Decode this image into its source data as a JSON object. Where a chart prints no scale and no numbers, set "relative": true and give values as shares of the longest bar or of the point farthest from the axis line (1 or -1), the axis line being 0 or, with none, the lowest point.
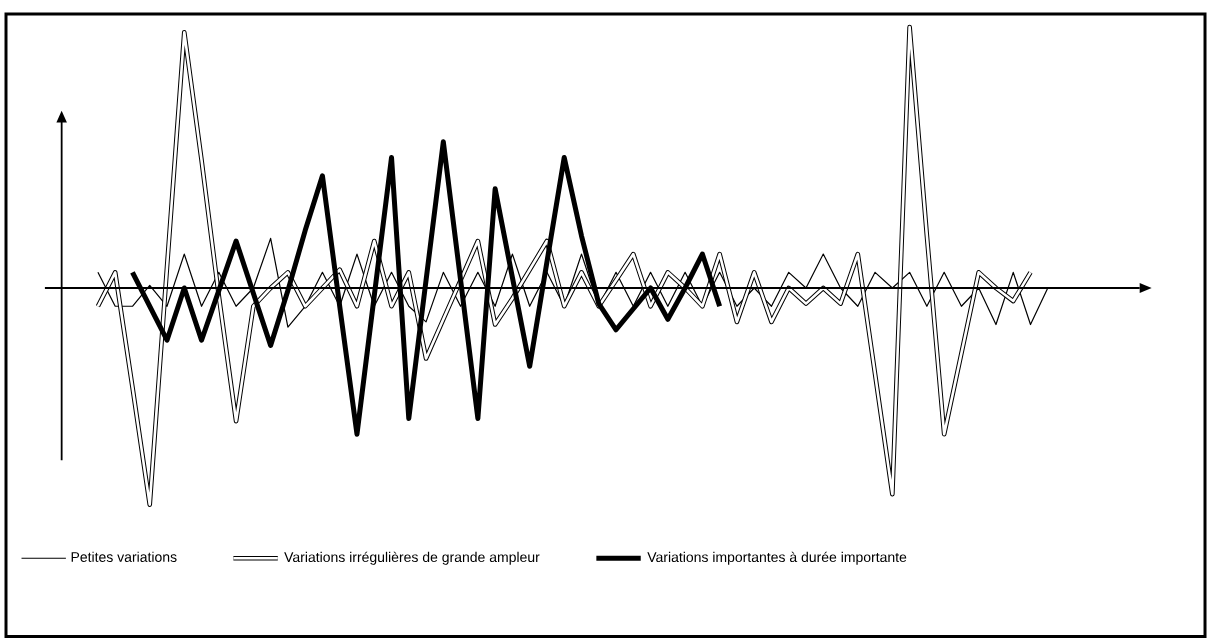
{
  "chart_data": {
    "type": "line",
    "relative": true,
    "legend": "bottom",
    "marker": "none",
    "line_style": "solid",
    "categories": [
      null,
      null,
      null,
      null,
      null,
      null,
      null,
      null,
      null,
      null,
      null,
      null,
      null,
      null,
      null,
      null,
      null,
      null,
      null,
      null,
      null,
      null,
      null,
      null,
      null,
      null,
      null,
      null,
      null,
      null,
      null,
      null,
      null,
      null,
      null,
      null,
      null,
      null,
      null,
      null,
      null,
      null,
      null,
      null,
      null,
      null,
      null,
      null,
      null,
      null,
      null,
      null,
      null,
      null,
      null,
      null
    ],
    "series": [
      {
        "name": "Petites variations",
        "color": "#000000",
        "values": [
          0.06,
          -0.07,
          -0.07,
          0.01,
          -0.07,
          0.13,
          -0.07,
          0.06,
          -0.07,
          0,
          0.19,
          -0.15,
          -0.07,
          0.06,
          -0.07,
          0.13,
          -0.07,
          0.06,
          -0.07,
          -0.13,
          0.06,
          -0.07,
          0.06,
          -0.07,
          0.13,
          -0.07,
          0.06,
          -0.07,
          0.13,
          -0.07,
          0.06,
          -0.07,
          0.06,
          -0.07,
          0.06,
          -0.07,
          0.06,
          -0.07,
          0,
          -0.07,
          0.06,
          0,
          0.13,
          0,
          -0.07,
          0.06,
          0,
          0.06,
          -0.07,
          0.06,
          -0.07,
          0,
          -0.14,
          0.06,
          -0.14,
          0
        ]
      },
      {
        "name": "Variations irrégulières  de grande ampleur",
        "color": "#000000",
        "values": [
          -0.07,
          0.06,
          -0.38,
          -0.83,
          0.08,
          0.98,
          0.49,
          -0.03,
          -0.51,
          -0.07,
          0,
          0.06,
          -0.07,
          0,
          0.07,
          -0.07,
          0.18,
          -0.07,
          0.06,
          -0.27,
          -0.12,
          0.03,
          0.18,
          -0.14,
          -0.04,
          0.07,
          0.18,
          -0.07,
          0.06,
          -0.07,
          0.03,
          0.13,
          -0.07,
          0.06,
          0,
          -0.07,
          0.13,
          -0.13,
          0.06,
          -0.13,
          0,
          -0.06,
          0,
          -0.06,
          0.13,
          -0.33,
          -0.79,
          1.0,
          0.2,
          -0.56,
          -0.25,
          0.06,
          0,
          -0.05,
          0.06,
          null
        ]
      },
      {
        "name": "Variations importantes à durée importante",
        "color": "#000000",
        "values": [
          null,
          null,
          0.06,
          -0.07,
          -0.2,
          0,
          -0.2,
          -0.01,
          0.18,
          -0.02,
          -0.22,
          -0.01,
          0.22,
          0.43,
          -0.07,
          -0.56,
          -0.03,
          0.5,
          -0.5,
          0.03,
          0.56,
          0.03,
          -0.5,
          0.38,
          0.04,
          -0.3,
          0.1,
          0.5,
          0.2,
          -0.06,
          -0.16,
          -0.08,
          0,
          -0.12,
          0,
          0.13,
          -0.07,
          null,
          null,
          null,
          null,
          null,
          null,
          null,
          null,
          null,
          null,
          null,
          null,
          null,
          null,
          null,
          null,
          null,
          null,
          null
        ]
      }
    ]
  }
}
